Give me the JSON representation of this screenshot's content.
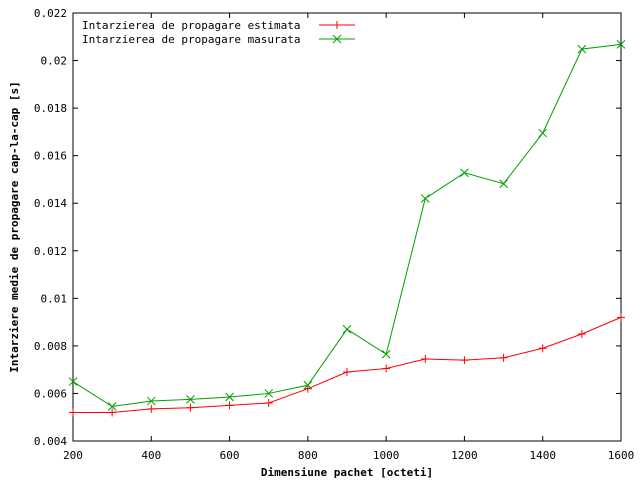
{
  "chart_data": {
    "type": "line",
    "xlabel": "Dimensiune pachet [octeti]",
    "ylabel": "Intarziere medie de propagare cap-la-cap [s]",
    "xlim": [
      200,
      1600
    ],
    "ylim": [
      0.004,
      0.022
    ],
    "x_ticks": [
      "200",
      "400",
      "600",
      "800",
      "1000",
      "1200",
      "1400",
      "1600"
    ],
    "y_ticks": [
      "0.004",
      "0.006",
      "0.008",
      "0.01",
      "0.012",
      "0.014",
      "0.016",
      "0.018",
      "0.02",
      "0.022"
    ],
    "legend_position": "top-left",
    "series": [
      {
        "name": "Intarzierea de propagare estimata",
        "color": "#ff0000",
        "marker": "plus",
        "x": [
          200,
          300,
          400,
          500,
          600,
          700,
          800,
          900,
          1000,
          1100,
          1200,
          1300,
          1400,
          1500,
          1600
        ],
        "values": [
          0.0052,
          0.0052,
          0.00535,
          0.0054,
          0.0055,
          0.0056,
          0.0062,
          0.0069,
          0.00705,
          0.00745,
          0.0074,
          0.0075,
          0.0079,
          0.0085,
          0.0092
        ]
      },
      {
        "name": "Intarzierea de propagare masurata",
        "color": "#00a000",
        "marker": "cross",
        "x": [
          200,
          300,
          400,
          500,
          600,
          700,
          800,
          900,
          1000,
          1100,
          1200,
          1300,
          1400,
          1500,
          1600
        ],
        "values": [
          0.0065,
          0.00545,
          0.00568,
          0.00575,
          0.00585,
          0.006,
          0.00635,
          0.0087,
          0.00765,
          0.0142,
          0.01528,
          0.01482,
          0.01695,
          0.02048,
          0.02068
        ]
      }
    ]
  }
}
